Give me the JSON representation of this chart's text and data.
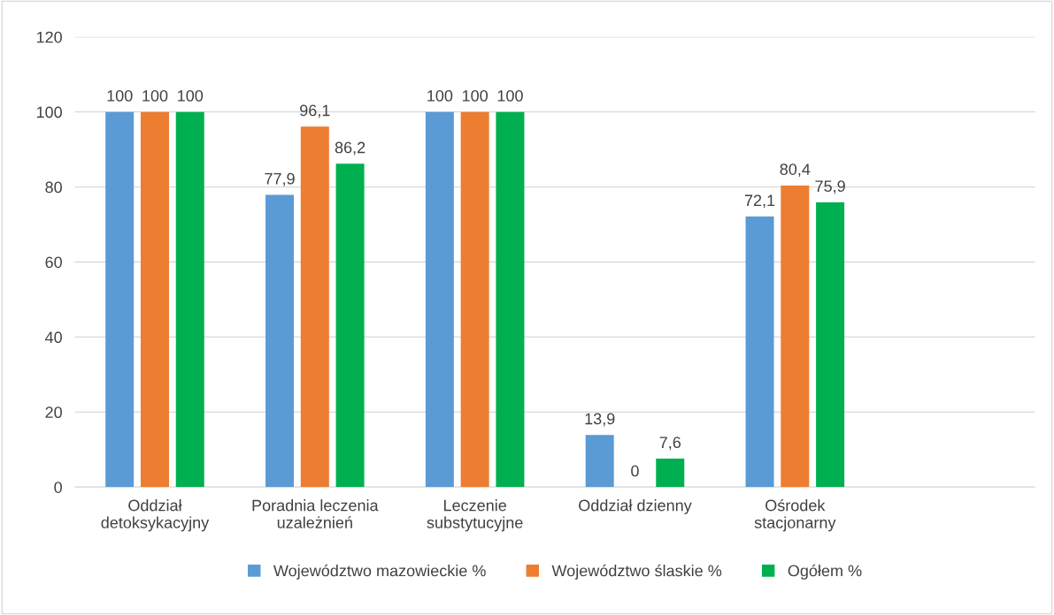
{
  "chart_data": {
    "type": "bar",
    "categories": [
      "Oddział\ndetoksykacyjny",
      "Poradnia leczenia\nuzależnień",
      "Leczenie\nsubstytucyjne",
      "Oddział dzienny",
      "Ośrodek\nstacjonarny",
      null
    ],
    "series": [
      {
        "name": "Województwo mazowieckie %",
        "color": "#5b9bd5",
        "values": [
          100,
          77.9,
          100,
          13.9,
          72.1,
          null
        ],
        "value_labels": [
          "100",
          "77,9",
          "100",
          "13,9",
          "72,1",
          null
        ]
      },
      {
        "name": "Województwo ślaskie %",
        "color": "#ed7d31",
        "values": [
          100,
          96.1,
          100,
          0,
          80.4,
          null
        ],
        "value_labels": [
          "100",
          "96,1",
          "100",
          "0",
          "80,4",
          null
        ]
      },
      {
        "name": "Ogółem %",
        "color": "#00b050",
        "values": [
          100,
          86.2,
          100,
          7.6,
          75.9,
          null
        ],
        "value_labels": [
          "100",
          "86,2",
          "100",
          "7,6",
          "75,9",
          null
        ]
      }
    ],
    "ylim": [
      0,
      120
    ],
    "yticks": [
      0,
      20,
      40,
      60,
      80,
      100,
      120
    ],
    "grid": "y",
    "legend": "bottom"
  }
}
